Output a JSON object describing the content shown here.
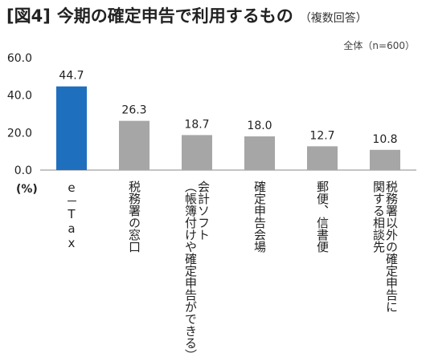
{
  "header": {
    "tag": "[図4]",
    "title": "今期の確定申告で利用するもの",
    "subtitle": "（複数回答）",
    "sample_note": "全体（n=600）"
  },
  "colors": {
    "highlight": "#1f6fbf",
    "bar": "#a6a6a6",
    "axis": "#888888"
  },
  "chart_data": {
    "type": "bar",
    "title": "今期の確定申告で利用するもの",
    "unit_label": "(%)",
    "ylim": [
      0,
      60
    ],
    "yticks": [
      "0.0",
      "20.0",
      "40.0",
      "60.0"
    ],
    "grid": false,
    "categories": [
      "e－Tax",
      "税務署の窓口",
      "会計ソフト（帳簿付けや確定申告ができる）",
      "確定申告会場",
      "郵便、信書便",
      "税務署以外の確定申告に関する相談先"
    ],
    "category_columns": [
      [
        "e－Tax"
      ],
      [
        "税務署の窓口"
      ],
      [
        "会計ソフト",
        "（帳簿付けや確定申告ができる）"
      ],
      [
        "確定申告会場"
      ],
      [
        "郵便、信書便"
      ],
      [
        "税務署以外の確定申告に",
        "関する相談先"
      ]
    ],
    "values": [
      44.7,
      26.3,
      18.7,
      18.0,
      12.7,
      10.8
    ],
    "value_labels": [
      "44.7",
      "26.3",
      "18.7",
      "18.0",
      "12.7",
      "10.8"
    ],
    "highlight_index": 0
  }
}
